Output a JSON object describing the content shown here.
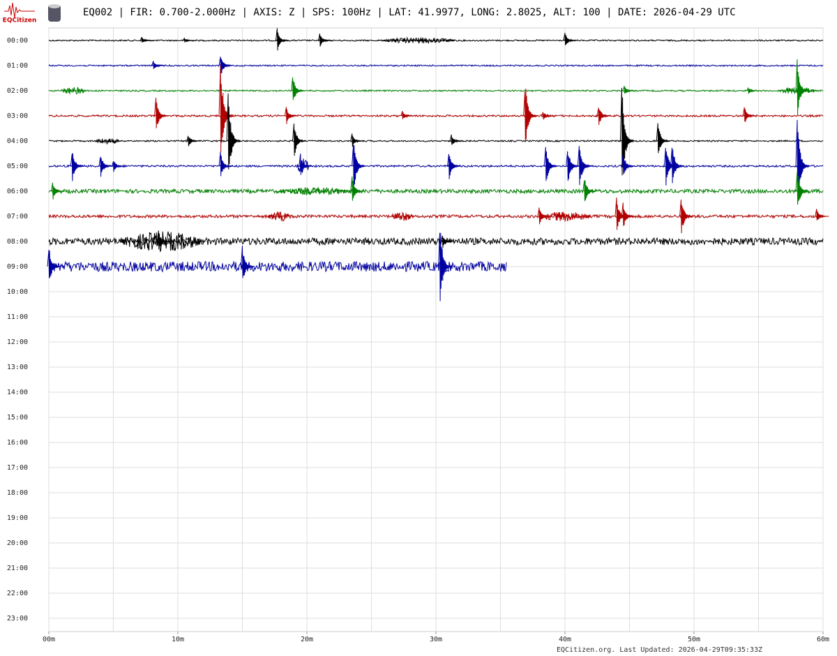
{
  "logo": "EQCitizen",
  "footer": "EQCitizen.org. Last Updated: 2026-04-29T09:35:33Z",
  "chart_data": {
    "type": "helicorder",
    "title": "EQ002 | FIR: 0.700-2.000Hz | AXIS: Z | SPS: 100Hz | LAT: 41.9977, LONG: 2.8025, ALT: 100 | DATE: 2026-04-29 UTC",
    "categories": [
      "00:00",
      "01:00",
      "02:00",
      "03:00",
      "04:00",
      "05:00",
      "06:00",
      "07:00",
      "08:00",
      "09:00",
      "10:00",
      "11:00",
      "12:00",
      "13:00",
      "14:00",
      "15:00",
      "16:00",
      "17:00",
      "18:00",
      "19:00",
      "20:00",
      "21:00",
      "22:00",
      "23:00"
    ],
    "xlim": [
      0,
      60
    ],
    "xticks": [
      {
        "value": 0,
        "label": "00m"
      },
      {
        "value": 10,
        "label": "10m"
      },
      {
        "value": 20,
        "label": "20m"
      },
      {
        "value": 30,
        "label": "30m"
      },
      {
        "value": 40,
        "label": "40m"
      },
      {
        "value": 50,
        "label": "50m"
      },
      {
        "value": 60,
        "label": "60m"
      }
    ],
    "xgrid": [
      0,
      5,
      10,
      15,
      20,
      25,
      30,
      35,
      40,
      45,
      50,
      55,
      60
    ],
    "grid": true,
    "series": [
      {
        "name": "00:00",
        "color": "#000000",
        "noise": 0.03,
        "x": [
          17.7,
          21,
          40,
          7.2,
          10.5
        ],
        "values": [
          0.5,
          0.3,
          0.35,
          0.15,
          0.1
        ],
        "bursts": [
          {
            "start": 25.8,
            "end": 31.5,
            "amp": 0.12
          }
        ]
      },
      {
        "name": "01:00",
        "color": "#0000a0",
        "noise": 0.03,
        "x": [
          8.1,
          13.3
        ],
        "values": [
          0.2,
          0.5
        ],
        "bursts": []
      },
      {
        "name": "02:00",
        "color": "#008000",
        "noise": 0.03,
        "x": [
          18.9,
          58,
          44.6,
          54.2
        ],
        "values": [
          0.7,
          1.3,
          0.2,
          0.15
        ],
        "bursts": [
          {
            "start": 0.9,
            "end": 2.9,
            "amp": 0.15
          },
          {
            "start": 56.5,
            "end": 59.5,
            "amp": 0.15
          }
        ]
      },
      {
        "name": "03:00",
        "color": "#b00000",
        "noise": 0.04,
        "x": [
          8.3,
          13.3,
          18.4,
          36.9,
          42.6,
          53.9,
          27.4,
          38.3
        ],
        "values": [
          0.8,
          2.5,
          0.4,
          1.6,
          0.5,
          0.4,
          0.2,
          0.2
        ],
        "bursts": []
      },
      {
        "name": "04:00",
        "color": "#000000",
        "noise": 0.03,
        "x": [
          10.8,
          13.9,
          19,
          31.2,
          44.4,
          47.2,
          23.5
        ],
        "values": [
          0.3,
          2.1,
          0.8,
          0.3,
          2.5,
          0.9,
          0.3
        ],
        "bursts": [
          {
            "start": 3.5,
            "end": 5.5,
            "amp": 0.12
          }
        ]
      },
      {
        "name": "05:00",
        "color": "#0000a0",
        "noise": 0.04,
        "x": [
          1.8,
          4,
          13.3,
          19.5,
          23.6,
          31,
          38.5,
          40.2,
          41.1,
          47.8,
          48.3,
          58,
          44.5,
          5
        ],
        "values": [
          0.8,
          0.6,
          0.6,
          0.5,
          1.3,
          0.7,
          0.9,
          0.9,
          1.1,
          1.0,
          1.0,
          2.2,
          0.6,
          0.3
        ],
        "bursts": [
          {
            "start": 19.2,
            "end": 20.2,
            "amp": 0.3
          }
        ]
      },
      {
        "name": "06:00",
        "color": "#008000",
        "noise": 0.08,
        "x": [
          0.3,
          23.5,
          41.5,
          58
        ],
        "values": [
          0.4,
          0.6,
          0.7,
          1.0
        ],
        "bursts": [
          {
            "start": 17.5,
            "end": 23.5,
            "amp": 0.15
          }
        ]
      },
      {
        "name": "07:00",
        "color": "#b00000",
        "noise": 0.06,
        "x": [
          38,
          44,
          49,
          59.5,
          44.5
        ],
        "values": [
          0.4,
          0.8,
          0.9,
          0.3,
          0.6
        ],
        "bursts": [
          {
            "start": 17,
            "end": 18.8,
            "amp": 0.2
          },
          {
            "start": 26.5,
            "end": 28.2,
            "amp": 0.2
          },
          {
            "start": 38,
            "end": 42,
            "amp": 0.2
          }
        ]
      },
      {
        "name": "08:00",
        "color": "#000000",
        "noise": 0.14,
        "x": [
          30.5,
          8.5
        ],
        "values": [
          0.3,
          0.5
        ],
        "bursts": [
          {
            "start": 5.5,
            "end": 12,
            "amp": 0.4
          }
        ]
      },
      {
        "name": "09:00",
        "color": "#0000a0",
        "noise": 0.2,
        "end": 35.5,
        "x": [
          0,
          15,
          30.3
        ],
        "values": [
          0.9,
          0.9,
          2.0
        ],
        "bursts": []
      }
    ]
  }
}
